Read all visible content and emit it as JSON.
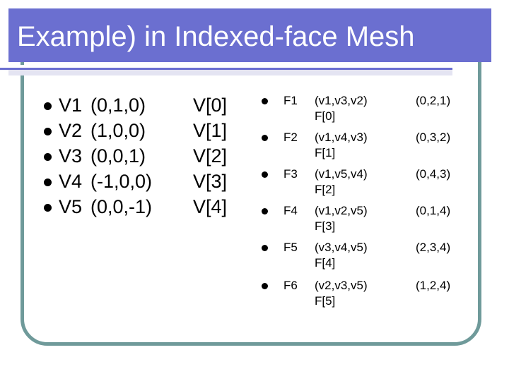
{
  "slide": {
    "title": "Example) in Indexed-face Mesh"
  },
  "vertices": [
    {
      "name": "V1",
      "coords": "(0,1,0)",
      "index": "V[0]"
    },
    {
      "name": "V2",
      "coords": "(1,0,0)",
      "index": "V[1]"
    },
    {
      "name": "V3",
      "coords": "(0,0,1)",
      "index": "V[2]"
    },
    {
      "name": "V4",
      "coords": "(-1,0,0)",
      "index": "V[3]"
    },
    {
      "name": "V5",
      "coords": "(0,0,-1)",
      "index": "V[4]"
    }
  ],
  "faces": [
    {
      "name": "F1",
      "verts": "(v1,v3,v2)",
      "index": "F[0]",
      "ids": "(0,2,1)"
    },
    {
      "name": "F2",
      "verts": "(v1,v4,v3)",
      "index": "F[1]",
      "ids": "(0,3,2)"
    },
    {
      "name": "F3",
      "verts": "(v1,v5,v4)",
      "index": "F[2]",
      "ids": "(0,4,3)"
    },
    {
      "name": "F4",
      "verts": "(v1,v2,v5)",
      "index": "F[3]",
      "ids": "(0,1,4)"
    },
    {
      "name": "F5",
      "verts": "(v3,v4,v5)",
      "index": "F[4]",
      "ids": "(2,3,4)"
    },
    {
      "name": "F6",
      "verts": "(v2,v3,v5)",
      "index": "F[5]",
      "ids": "(1,2,4)"
    }
  ]
}
